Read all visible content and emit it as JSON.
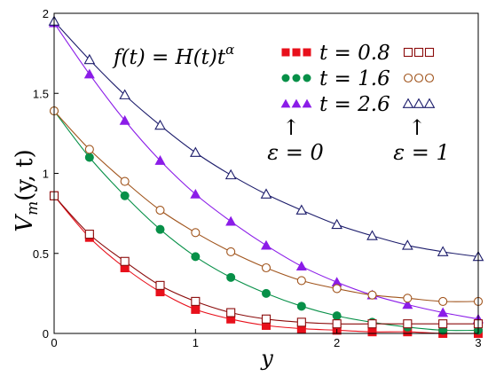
{
  "chart_data": {
    "type": "line",
    "title": "",
    "xlabel": "y",
    "ylabel": "V_m(y, t)",
    "ylabel_parts": {
      "main": "V",
      "sub": "m",
      "args": "(y, t)"
    },
    "xlim": [
      0,
      3
    ],
    "ylim": [
      0,
      2
    ],
    "grid": false,
    "legend": "top-right",
    "x_ticks": [
      {
        "value": 0,
        "label": "0"
      },
      {
        "value": 1,
        "label": "1"
      },
      {
        "value": 2,
        "label": "2"
      },
      {
        "value": 3,
        "label": "3"
      }
    ],
    "y_ticks": [
      {
        "value": 0,
        "label": "0"
      },
      {
        "value": 0.5,
        "label": "0.5"
      },
      {
        "value": 1,
        "label": "1"
      },
      {
        "value": 1.5,
        "label": "1.5"
      },
      {
        "value": 2,
        "label": "2"
      }
    ],
    "annotation": {
      "formula_text": "f(t) = H(t)t",
      "formula_exponent": "α",
      "eps0_label": "ε = 0",
      "eps1_label": "ε = 1",
      "arrow_glyph": "↑"
    },
    "legend_rows": [
      {
        "label": "t = 0.8",
        "filled_series": 0,
        "open_series": 3
      },
      {
        "label": "t = 1.6",
        "filled_series": 1,
        "open_series": 4
      },
      {
        "label": "t = 2.6",
        "filled_series": 2,
        "open_series": 5
      }
    ],
    "x": [
      0,
      0.25,
      0.5,
      0.75,
      1,
      1.25,
      1.5,
      1.75,
      2,
      2.25,
      2.5,
      2.75,
      3
    ],
    "series": [
      {
        "t": 0.8,
        "epsilon": 0,
        "marker": "square",
        "filled": true,
        "color": "#e8101b",
        "values": [
          0.86,
          0.6,
          0.41,
          0.26,
          0.15,
          0.09,
          0.05,
          0.03,
          0.02,
          0.01,
          0.01,
          0.0,
          0.0
        ]
      },
      {
        "t": 1.6,
        "epsilon": 0,
        "marker": "circle",
        "filled": true,
        "color": "#079048",
        "values": [
          1.39,
          1.1,
          0.86,
          0.65,
          0.48,
          0.35,
          0.25,
          0.17,
          0.11,
          0.07,
          0.04,
          0.02,
          0.02
        ]
      },
      {
        "t": 2.6,
        "epsilon": 0,
        "marker": "triangle",
        "filled": true,
        "color": "#8b1ce8",
        "values": [
          1.94,
          1.62,
          1.33,
          1.08,
          0.87,
          0.7,
          0.55,
          0.42,
          0.32,
          0.24,
          0.18,
          0.13,
          0.09
        ]
      },
      {
        "t": 0.8,
        "epsilon": 1,
        "marker": "square",
        "filled": false,
        "color": "#8b0b0b",
        "values": [
          0.86,
          0.62,
          0.45,
          0.3,
          0.2,
          0.13,
          0.09,
          0.07,
          0.06,
          0.06,
          0.06,
          0.06,
          0.06
        ]
      },
      {
        "t": 1.6,
        "epsilon": 1,
        "marker": "circle",
        "filled": false,
        "color": "#a0541c",
        "values": [
          1.39,
          1.15,
          0.95,
          0.77,
          0.63,
          0.51,
          0.41,
          0.33,
          0.28,
          0.24,
          0.22,
          0.2,
          0.2
        ]
      },
      {
        "t": 2.6,
        "epsilon": 1,
        "marker": "triangle",
        "filled": false,
        "color": "#1c1c6b",
        "values": [
          1.95,
          1.71,
          1.49,
          1.3,
          1.13,
          0.99,
          0.87,
          0.77,
          0.68,
          0.61,
          0.55,
          0.51,
          0.48
        ]
      }
    ]
  }
}
